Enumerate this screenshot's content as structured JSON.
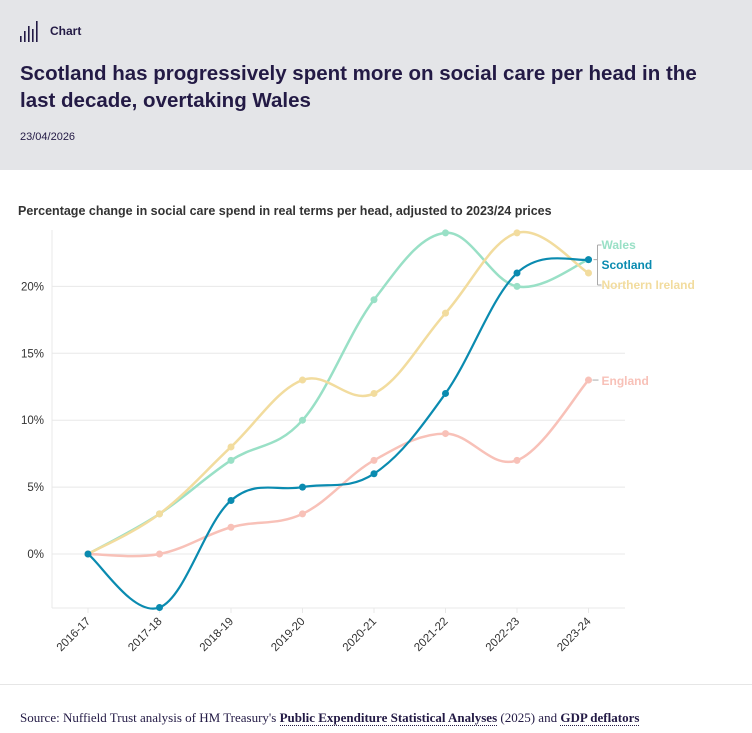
{
  "header": {
    "kicker_icon": "bar-chart-icon",
    "kicker_label": "Chart",
    "title": "Scotland has progressively spent more on social care per head in the last decade, overtaking Wales",
    "date": "23/04/2026"
  },
  "chart_data": {
    "type": "line",
    "title": "Percentage change in social care spend in real terms per head, adjusted to 2023/24 prices",
    "xlabel": "",
    "ylabel": "",
    "categories": [
      "2016-17",
      "2017-18",
      "2018-19",
      "2019-20",
      "2020-21",
      "2021-22",
      "2022-23",
      "2023-24"
    ],
    "yticks": [
      0,
      5,
      10,
      15,
      20
    ],
    "ytick_labels": [
      "0%",
      "5%",
      "10%",
      "15%",
      "20%"
    ],
    "ylim": [
      -4,
      24.5
    ],
    "grid": true,
    "legend": "right-end-labels",
    "series": [
      {
        "name": "Wales",
        "color": "#99e0c6",
        "values": [
          0,
          3,
          7,
          10,
          19,
          24,
          20,
          22
        ]
      },
      {
        "name": "Northern Ireland",
        "color": "#f2dc9e",
        "values": [
          0,
          3,
          8,
          13,
          12,
          18,
          24,
          21
        ]
      },
      {
        "name": "England",
        "color": "#f8c1b8",
        "values": [
          0,
          0,
          2,
          3,
          7,
          9,
          7,
          13
        ]
      },
      {
        "name": "Scotland",
        "color": "#0a8bb0",
        "values": [
          0,
          -4,
          4,
          5,
          6,
          12,
          21,
          22
        ]
      }
    ]
  },
  "source": {
    "prefix": "Source: Nuffield Trust analysis of HM Treasury's ",
    "link1": "Public Expenditure Statistical Analyses",
    "middle": " (2025) and ",
    "link2": "GDP deflators"
  }
}
